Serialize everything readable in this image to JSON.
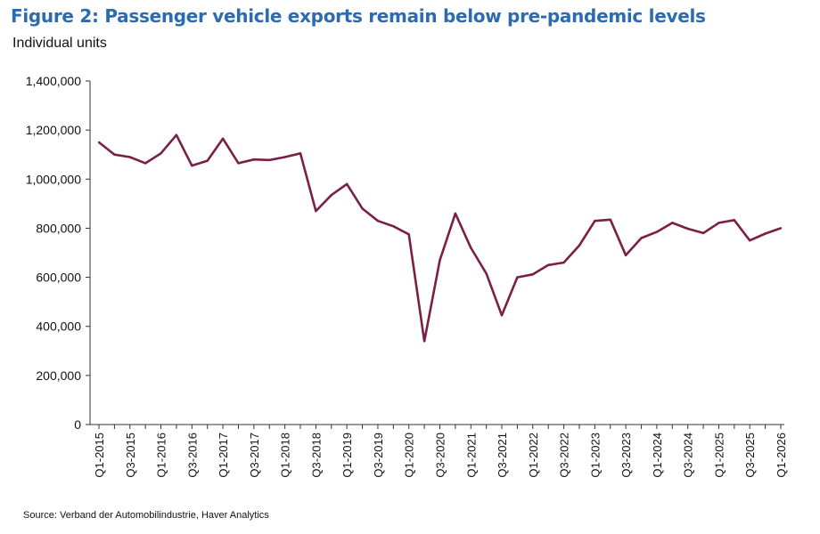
{
  "title": "Figure 2: Passenger vehicle exports remain below pre-pandemic levels",
  "subtitle": "Individual units",
  "source": "Source: Verband der Automobilindustrie, Haver Analytics",
  "chart_data": {
    "type": "line",
    "line_color": "#7a1f45",
    "ylim": [
      0,
      1400000
    ],
    "yticks": [
      0,
      200000,
      400000,
      600000,
      800000,
      1000000,
      1200000,
      1400000
    ],
    "ytick_labels": [
      "0",
      "200,000",
      "400,000",
      "600,000",
      "800,000",
      "1,000,000",
      "1,200,000",
      "1,400,000"
    ],
    "grid": false,
    "x": [
      "Q1-2015",
      "Q2-2015",
      "Q3-2015",
      "Q4-2015",
      "Q1-2016",
      "Q2-2016",
      "Q3-2016",
      "Q4-2016",
      "Q1-2017",
      "Q2-2017",
      "Q3-2017",
      "Q4-2017",
      "Q1-2018",
      "Q2-2018",
      "Q3-2018",
      "Q4-2018",
      "Q1-2019",
      "Q2-2019",
      "Q3-2019",
      "Q4-2019",
      "Q1-2020",
      "Q2-2020",
      "Q3-2020",
      "Q4-2020",
      "Q1-2021",
      "Q2-2021",
      "Q3-2021",
      "Q4-2021",
      "Q1-2022",
      "Q2-2022",
      "Q3-2022",
      "Q4-2022",
      "Q1-2023",
      "Q2-2023",
      "Q3-2023",
      "Q4-2023",
      "Q1-2024",
      "Q2-2024",
      "Q3-2024",
      "Q4-2024",
      "Q1-2025",
      "Q2-2025",
      "Q3-2025",
      "Q4-2025",
      "Q1-2026"
    ],
    "xtick_labels": [
      "Q1-2015",
      "Q3-2015",
      "Q1-2016",
      "Q3-2016",
      "Q1-2017",
      "Q3-2017",
      "Q1-2018",
      "Q3-2018",
      "Q1-2019",
      "Q3-2019",
      "Q1-2020",
      "Q3-2020",
      "Q1-2021",
      "Q3-2021",
      "Q1-2022",
      "Q3-2022",
      "Q1-2023",
      "Q3-2023",
      "Q1-2024",
      "Q3-2024",
      "Q1-2025",
      "Q3-2025",
      "Q1-2026"
    ],
    "values": [
      1150000,
      1100000,
      1090000,
      1065000,
      1105000,
      1180000,
      1055000,
      1075000,
      1165000,
      1065000,
      1080000,
      1078000,
      1090000,
      1105000,
      870000,
      935000,
      980000,
      880000,
      830000,
      808000,
      775000,
      340000,
      670000,
      860000,
      720000,
      615000,
      445000,
      600000,
      612000,
      650000,
      660000,
      730000,
      830000,
      835000,
      690000,
      760000,
      785000,
      822000,
      798000,
      780000,
      822000,
      833000,
      750000,
      778000,
      800000
    ]
  }
}
